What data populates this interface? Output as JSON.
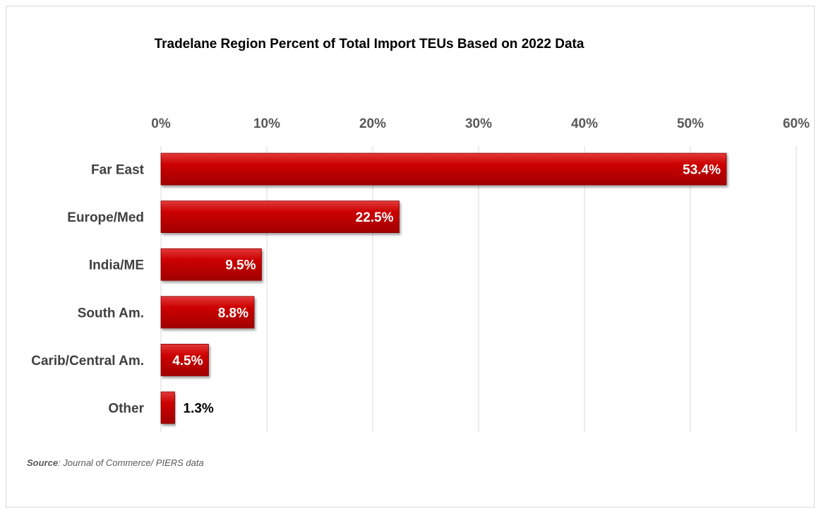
{
  "chart_data": {
    "type": "bar",
    "orientation": "horizontal",
    "title": "Tradelane Region Percent of Total Import TEUs Based on 2022 Data",
    "categories": [
      "Far East",
      "Europe/Med",
      "India/ME",
      "South Am.",
      "Carib/Central Am.",
      "Other"
    ],
    "values": [
      53.4,
      22.5,
      9.5,
      8.8,
      4.5,
      1.3
    ],
    "data_labels": [
      "53.4%",
      "22.5%",
      "9.5%",
      "8.8%",
      "4.5%",
      "1.3%"
    ],
    "xlim": [
      0,
      60
    ],
    "x_ticks": [
      "0%",
      "10%",
      "20%",
      "30%",
      "40%",
      "50%",
      "60%"
    ],
    "x_tick_values": [
      0,
      10,
      20,
      30,
      40,
      50,
      60
    ],
    "x_axis_position": "top",
    "grid": true,
    "bar_color": "#c00000",
    "xlabel": "",
    "ylabel": ""
  },
  "source": {
    "label": "Source",
    "text": ": Journal of Commerce/ PIERS data"
  }
}
